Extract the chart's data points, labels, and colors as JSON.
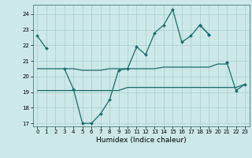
{
  "xlabel": "Humidex (Indice chaleur)",
  "x": [
    0,
    1,
    2,
    3,
    4,
    5,
    6,
    7,
    8,
    9,
    10,
    11,
    12,
    13,
    14,
    15,
    16,
    17,
    18,
    19,
    20,
    21,
    22,
    23
  ],
  "line_main": [
    22.6,
    21.8,
    null,
    20.5,
    19.2,
    17.0,
    17.0,
    17.6,
    18.5,
    20.4,
    20.5,
    21.9,
    21.4,
    22.8,
    23.3,
    24.3,
    22.2,
    22.6,
    23.3,
    22.7,
    null,
    20.9,
    null,
    null
  ],
  "line_upper_flat": [
    22.6,
    21.8,
    null,
    null,
    null,
    null,
    null,
    null,
    null,
    null,
    null,
    null,
    null,
    null,
    null,
    null,
    null,
    null,
    null,
    null,
    null,
    null,
    null,
    null
  ],
  "line_mid_flat": [
    20.5,
    20.5,
    20.5,
    20.5,
    20.5,
    20.4,
    20.4,
    20.4,
    20.5,
    20.5,
    20.5,
    20.5,
    20.5,
    20.5,
    20.6,
    20.6,
    20.6,
    20.6,
    20.6,
    20.6,
    20.8,
    20.8,
    null,
    null
  ],
  "line_low_flat": [
    19.1,
    19.1,
    19.1,
    19.1,
    19.1,
    19.1,
    19.1,
    19.1,
    19.1,
    19.1,
    19.3,
    19.3,
    19.3,
    19.3,
    19.3,
    19.3,
    19.3,
    19.3,
    19.3,
    19.3,
    19.3,
    19.3,
    19.3,
    19.5
  ],
  "line_right": [
    null,
    null,
    null,
    null,
    null,
    null,
    null,
    null,
    null,
    null,
    null,
    null,
    null,
    null,
    null,
    null,
    null,
    null,
    23.3,
    22.7,
    null,
    20.9,
    19.1,
    19.5
  ],
  "bg_color": "#cce8e8",
  "grid_color": "#aacccc",
  "line_color": "#1a6b6b",
  "ylim_min": 16.8,
  "ylim_max": 24.6,
  "yticks": [
    17,
    18,
    19,
    20,
    21,
    22,
    23,
    24
  ],
  "xticks": [
    0,
    1,
    2,
    3,
    4,
    5,
    6,
    7,
    8,
    9,
    10,
    11,
    12,
    13,
    14,
    15,
    16,
    17,
    18,
    19,
    20,
    21,
    22,
    23
  ],
  "marker": "D",
  "markersize": 2.0,
  "linewidth": 0.9,
  "xlabel_fontsize": 6.5,
  "tick_fontsize": 5.0
}
